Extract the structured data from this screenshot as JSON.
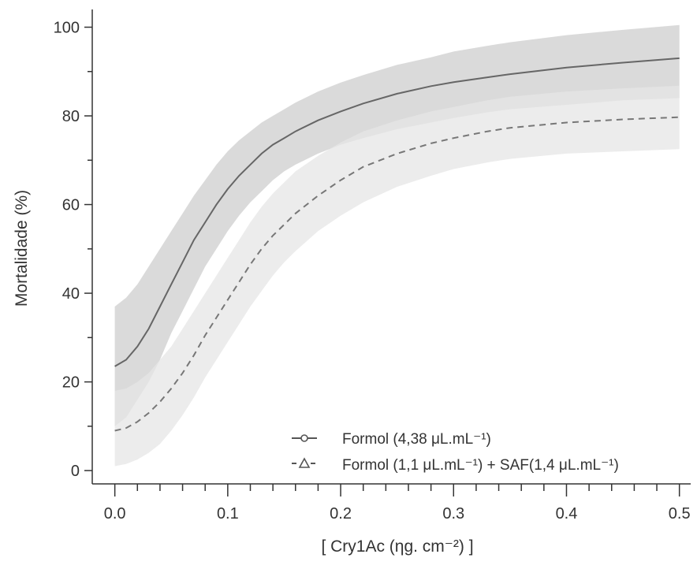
{
  "chart_data": {
    "type": "line",
    "title": "",
    "xlabel": "[ Cry1Ac (ηg. cm⁻²) ]",
    "ylabel": "Mortalidade (%)",
    "xlim": [
      -0.02,
      0.51
    ],
    "ylim": [
      -3,
      104
    ],
    "xticks": [
      0.0,
      0.1,
      0.2,
      0.3,
      0.4,
      0.5
    ],
    "xtick_labels": [
      "0.0",
      "0.1",
      "0.2",
      "0.3",
      "0.4",
      "0.5"
    ],
    "yticks": [
      0,
      20,
      40,
      60,
      80,
      100
    ],
    "ytick_labels": [
      "0",
      "20",
      "40",
      "60",
      "80",
      "100"
    ],
    "grid": false,
    "legend_position": "bottom-right",
    "series": [
      {
        "name": "Formol (4,38 μL.mL⁻¹)",
        "marker": "circle",
        "line_style": "solid",
        "color": "#666666",
        "band_color": "#d3d3d3",
        "x": [
          0.0,
          0.01,
          0.02,
          0.03,
          0.04,
          0.05,
          0.06,
          0.07,
          0.08,
          0.09,
          0.1,
          0.11,
          0.12,
          0.13,
          0.14,
          0.15,
          0.16,
          0.18,
          0.2,
          0.22,
          0.25,
          0.28,
          0.3,
          0.33,
          0.35,
          0.4,
          0.45,
          0.5
        ],
        "y": [
          23.5,
          25,
          28,
          32,
          37,
          42,
          47,
          52,
          56,
          60,
          63.5,
          66.5,
          69,
          71.5,
          73.5,
          75,
          76.5,
          79,
          81,
          82.8,
          85,
          86.7,
          87.6,
          88.7,
          89.4,
          90.9,
          92,
          93
        ],
        "lower": [
          10,
          12,
          16,
          20,
          25,
          31,
          36,
          41,
          46,
          50,
          54,
          57.5,
          60.5,
          63,
          65.5,
          67.5,
          69,
          71.5,
          73.5,
          75,
          77,
          78.5,
          79.5,
          80.8,
          81.5,
          82.5,
          83.5,
          84
        ],
        "upper": [
          37,
          39,
          42,
          46,
          50,
          54,
          58,
          62,
          65.5,
          69,
          72,
          74.5,
          76.5,
          78.5,
          80,
          81.5,
          83,
          85.5,
          87.5,
          89.2,
          91.5,
          93.2,
          94.5,
          95.8,
          96.6,
          98.2,
          99.4,
          100.5
        ]
      },
      {
        "name": "Formol (1,1 μL.mL⁻¹) + SAF(1,4 μL.mL⁻¹)",
        "marker": "triangle",
        "line_style": "dashed",
        "color": "#777777",
        "band_color": "#e6e6e6",
        "x": [
          0.0,
          0.01,
          0.02,
          0.03,
          0.04,
          0.05,
          0.06,
          0.07,
          0.08,
          0.09,
          0.1,
          0.11,
          0.12,
          0.13,
          0.14,
          0.15,
          0.16,
          0.18,
          0.2,
          0.22,
          0.25,
          0.28,
          0.3,
          0.33,
          0.35,
          0.4,
          0.45,
          0.5
        ],
        "y": [
          9,
          9.6,
          11,
          13,
          15.5,
          18.5,
          22,
          26,
          30.5,
          34.5,
          38.5,
          42.5,
          46.5,
          50,
          53,
          55.5,
          58,
          62,
          65.5,
          68.5,
          71.5,
          73.8,
          75,
          76.5,
          77.3,
          78.5,
          79.2,
          79.7
        ],
        "lower": [
          1,
          1.5,
          2.5,
          4,
          6,
          9,
          12.5,
          16.5,
          21,
          25,
          29,
          33,
          37,
          40.5,
          44,
          47,
          49.5,
          54,
          57.5,
          60.5,
          64,
          66.5,
          68,
          69.5,
          70.3,
          71.5,
          72,
          72.5
        ],
        "upper": [
          18,
          18.5,
          20,
          22,
          25,
          28,
          32,
          36,
          40,
          44,
          48,
          52,
          56,
          59.5,
          62.5,
          65,
          67.5,
          71,
          74,
          76.5,
          79,
          81,
          82,
          83.5,
          84.3,
          85.5,
          86.2,
          86.8
        ]
      }
    ]
  }
}
